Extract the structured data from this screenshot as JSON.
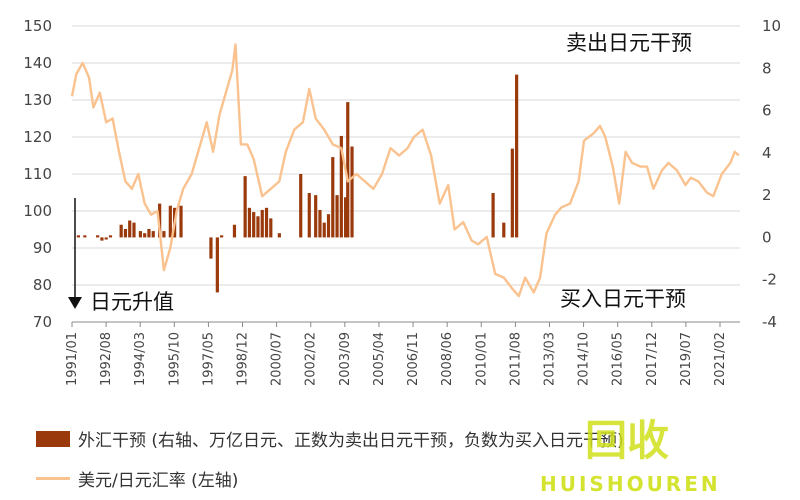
{
  "chart_data": {
    "type": "bar+line",
    "left_axis": {
      "ticks": [
        "150",
        "140",
        "130",
        "120",
        "110",
        "100",
        "90",
        "80",
        "70"
      ],
      "ylim": [
        70,
        150
      ]
    },
    "right_axis": {
      "ticks": [
        "10",
        "8",
        "6",
        "4",
        "2",
        "0",
        "-2",
        "-4"
      ],
      "ylim": [
        -4,
        10
      ]
    },
    "x_tick_labels": [
      "1991/01",
      "1992/08",
      "1994/03",
      "1995/10",
      "1997/05",
      "1998/12",
      "2000/07",
      "2002/02",
      "2003/09",
      "2005/04",
      "2006/11",
      "2008/06",
      "2010/01",
      "2011/08",
      "2013/03",
      "2014/10",
      "2016/05",
      "2017/12",
      "2019/07",
      "2021/02"
    ],
    "x_start": 1991.0,
    "x_end": 2022.25,
    "annotations": {
      "top_right": "卖出日元干预",
      "bottom_right": "买入日元干预",
      "bottom_left": "日元升值"
    },
    "series": [
      {
        "name": "外汇干预 (右轴、万亿日元、正数为卖出日元干预，负数为买入日元干预)",
        "type": "bar",
        "axis": "right",
        "color": "#9a3a0c",
        "points": [
          [
            1991.3,
            0.1
          ],
          [
            1991.6,
            0.1
          ],
          [
            1992.2,
            0.1
          ],
          [
            1992.4,
            -0.15
          ],
          [
            1992.6,
            -0.1
          ],
          [
            1992.8,
            0.1
          ],
          [
            1993.3,
            0.6
          ],
          [
            1993.5,
            0.4
          ],
          [
            1993.7,
            0.8
          ],
          [
            1993.9,
            0.7
          ],
          [
            1994.2,
            0.3
          ],
          [
            1994.4,
            0.2
          ],
          [
            1994.6,
            0.4
          ],
          [
            1994.8,
            0.3
          ],
          [
            1995.1,
            1.6
          ],
          [
            1995.3,
            0.3
          ],
          [
            1995.6,
            1.5
          ],
          [
            1995.8,
            1.4
          ],
          [
            1996.1,
            1.5
          ],
          [
            1997.5,
            -1.0
          ],
          [
            1997.8,
            -2.6
          ],
          [
            1998.0,
            0.1
          ],
          [
            1998.6,
            0.6
          ],
          [
            1999.1,
            2.9
          ],
          [
            1999.3,
            1.4
          ],
          [
            1999.5,
            1.2
          ],
          [
            1999.7,
            1.0
          ],
          [
            1999.9,
            1.3
          ],
          [
            2000.1,
            1.4
          ],
          [
            2000.3,
            0.9
          ],
          [
            2000.7,
            0.2
          ],
          [
            2001.7,
            3.0
          ],
          [
            2002.1,
            2.1
          ],
          [
            2002.4,
            2.0
          ],
          [
            2002.6,
            1.3
          ],
          [
            2002.8,
            0.7
          ],
          [
            2003.0,
            1.1
          ],
          [
            2003.2,
            3.8
          ],
          [
            2003.4,
            2.0
          ],
          [
            2003.6,
            4.8
          ],
          [
            2003.8,
            1.9
          ],
          [
            2003.9,
            6.4
          ],
          [
            2004.1,
            4.3
          ],
          [
            2010.7,
            2.1
          ],
          [
            2011.2,
            0.7
          ],
          [
            2011.6,
            4.2
          ],
          [
            2011.8,
            7.7
          ]
        ]
      },
      {
        "name": "美元/日元汇率 (左轴)",
        "type": "line",
        "axis": "left",
        "color": "#f9c28f",
        "points": [
          [
            1991.0,
            131
          ],
          [
            1991.2,
            137
          ],
          [
            1991.5,
            140
          ],
          [
            1991.8,
            136
          ],
          [
            1992.0,
            128
          ],
          [
            1992.3,
            132
          ],
          [
            1992.6,
            124
          ],
          [
            1992.9,
            125
          ],
          [
            1993.2,
            116
          ],
          [
            1993.5,
            108
          ],
          [
            1993.8,
            106
          ],
          [
            1994.1,
            110
          ],
          [
            1994.4,
            102
          ],
          [
            1994.7,
            99
          ],
          [
            1995.0,
            100
          ],
          [
            1995.3,
            84
          ],
          [
            1995.6,
            90
          ],
          [
            1995.9,
            100
          ],
          [
            1996.2,
            106
          ],
          [
            1996.6,
            110
          ],
          [
            1997.0,
            118
          ],
          [
            1997.3,
            124
          ],
          [
            1997.6,
            116
          ],
          [
            1997.9,
            126
          ],
          [
            1998.2,
            132
          ],
          [
            1998.5,
            138
          ],
          [
            1998.65,
            145
          ],
          [
            1998.9,
            118
          ],
          [
            1999.2,
            118
          ],
          [
            1999.5,
            114
          ],
          [
            1999.9,
            104
          ],
          [
            2000.3,
            106
          ],
          [
            2000.7,
            108
          ],
          [
            2001.0,
            116
          ],
          [
            2001.4,
            122
          ],
          [
            2001.8,
            124
          ],
          [
            2002.1,
            133
          ],
          [
            2002.4,
            125
          ],
          [
            2002.8,
            122
          ],
          [
            2003.2,
            118
          ],
          [
            2003.6,
            117
          ],
          [
            2003.9,
            108
          ],
          [
            2004.3,
            110
          ],
          [
            2004.7,
            108
          ],
          [
            2005.1,
            106
          ],
          [
            2005.5,
            110
          ],
          [
            2005.9,
            117
          ],
          [
            2006.3,
            115
          ],
          [
            2006.7,
            117
          ],
          [
            2007.0,
            120
          ],
          [
            2007.4,
            122
          ],
          [
            2007.8,
            115
          ],
          [
            2008.2,
            102
          ],
          [
            2008.6,
            107
          ],
          [
            2008.9,
            95
          ],
          [
            2009.3,
            97
          ],
          [
            2009.7,
            92
          ],
          [
            2010.0,
            91
          ],
          [
            2010.4,
            93
          ],
          [
            2010.8,
            83
          ],
          [
            2011.2,
            82
          ],
          [
            2011.6,
            79
          ],
          [
            2011.9,
            77
          ],
          [
            2012.2,
            82
          ],
          [
            2012.6,
            78
          ],
          [
            2012.9,
            82
          ],
          [
            2013.2,
            94
          ],
          [
            2013.6,
            99
          ],
          [
            2013.9,
            101
          ],
          [
            2014.3,
            102
          ],
          [
            2014.7,
            108
          ],
          [
            2014.95,
            119
          ],
          [
            2015.4,
            121
          ],
          [
            2015.7,
            123
          ],
          [
            2015.95,
            120
          ],
          [
            2016.3,
            112
          ],
          [
            2016.6,
            102
          ],
          [
            2016.9,
            116
          ],
          [
            2017.2,
            113
          ],
          [
            2017.6,
            112
          ],
          [
            2017.9,
            112
          ],
          [
            2018.2,
            106
          ],
          [
            2018.6,
            111
          ],
          [
            2018.9,
            113
          ],
          [
            2019.3,
            111
          ],
          [
            2019.7,
            107
          ],
          [
            2019.95,
            109
          ],
          [
            2020.3,
            108
          ],
          [
            2020.7,
            105
          ],
          [
            2021.0,
            104
          ],
          [
            2021.4,
            110
          ],
          [
            2021.8,
            113
          ],
          [
            2022.0,
            116
          ],
          [
            2022.2,
            115
          ]
        ]
      }
    ]
  },
  "legend": {
    "bar_label": "外汇干预 (右轴、万亿日元、正数为卖出日元干预，负数为买入日元干预)",
    "line_label": "美元/日元汇率 (左轴)"
  },
  "watermark": {
    "glyphs": "回收",
    "text": "HUISHOUREN",
    "color": "#cfe01a"
  }
}
